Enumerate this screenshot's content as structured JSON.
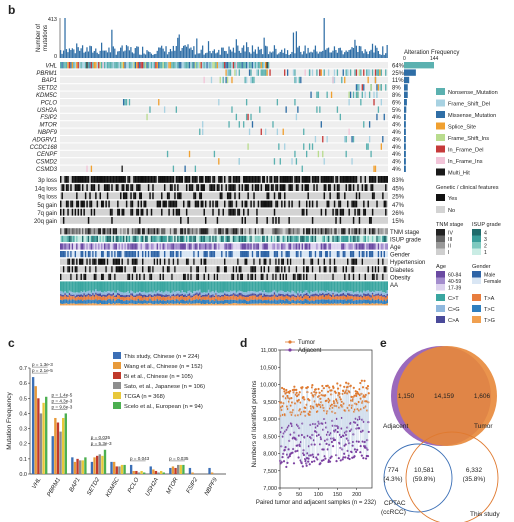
{
  "panels": {
    "b": "b",
    "c": "c",
    "d": "d",
    "e": "e"
  },
  "chart_data": [
    {
      "panel": "b",
      "type": "bar",
      "ylabel": "Number of mutations",
      "yticks": [
        413,
        0
      ],
      "frequency_axis": {
        "label": "Alteration Frequency",
        "ticks": [
          0,
          144
        ]
      },
      "genes": [
        {
          "name": "VHL",
          "pct": "64%",
          "freq": 144
        },
        {
          "name": "PBRM1",
          "pct": "25%",
          "freq": 57
        },
        {
          "name": "BAP1",
          "pct": "11%",
          "freq": 25
        },
        {
          "name": "SETD2",
          "pct": "8%",
          "freq": 18
        },
        {
          "name": "KDM5C",
          "pct": "8%",
          "freq": 18
        },
        {
          "name": "PCLO",
          "pct": "6%",
          "freq": 14
        },
        {
          "name": "USH2A",
          "pct": "5%",
          "freq": 11
        },
        {
          "name": "FSIP2",
          "pct": "4%",
          "freq": 9
        },
        {
          "name": "MTOR",
          "pct": "4%",
          "freq": 9
        },
        {
          "name": "NBPF9",
          "pct": "4%",
          "freq": 9
        },
        {
          "name": "ADGRV1",
          "pct": "4%",
          "freq": 9
        },
        {
          "name": "CCDC168",
          "pct": "4%",
          "freq": 9
        },
        {
          "name": "CENPF",
          "pct": "4%",
          "freq": 9
        },
        {
          "name": "CSMD2",
          "pct": "4%",
          "freq": 9
        },
        {
          "name": "CSMD3",
          "pct": "4%",
          "freq": 9
        }
      ],
      "cnv": [
        {
          "name": "3p loss",
          "pct": "83%"
        },
        {
          "name": "14q loss",
          "pct": "45%"
        },
        {
          "name": "9q loss",
          "pct": "25%"
        },
        {
          "name": "5q gain",
          "pct": "47%"
        },
        {
          "name": "7q gain",
          "pct": "26%"
        },
        {
          "name": "20q gain",
          "pct": "15%"
        }
      ],
      "clinical_tracks": [
        "TNM stage",
        "ISUP grade",
        "Age",
        "Gender",
        "Hypertension",
        "Diabetes",
        "Obesity",
        "AA"
      ],
      "mutation_legend": [
        {
          "label": "Nonsense_Mutation",
          "color": "#5bb1b0"
        },
        {
          "label": "Frame_Shift_Del",
          "color": "#a8d2e2"
        },
        {
          "label": "Missense_Mutation",
          "color": "#2f6ea6"
        },
        {
          "label": "Splice_Site",
          "color": "#f0a030"
        },
        {
          "label": "Frame_Shift_Ins",
          "color": "#b9dc8e"
        },
        {
          "label": "In_Frame_Del",
          "color": "#c63a3a"
        },
        {
          "label": "In_Frame_Ins",
          "color": "#f2c4d8"
        },
        {
          "label": "Multi_Hit",
          "color": "#1a1a1a"
        }
      ],
      "genetic_legend": {
        "title": "Genetic / clinical features",
        "items": [
          {
            "label": "Yes",
            "color": "#111111"
          },
          {
            "label": "No",
            "color": "#d3d3d3"
          }
        ]
      },
      "tnm_legend": {
        "title": "TNM stage",
        "levels": [
          "IV",
          "III",
          "II",
          "I"
        ],
        "colors": [
          "#222222",
          "#666666",
          "#9a9a9a",
          "#cfcfcf"
        ]
      },
      "isup_legend": {
        "title": "ISUP grade",
        "levels": [
          "4",
          "3",
          "2",
          "1"
        ],
        "colors": [
          "#1f6b6b",
          "#3a9e9a",
          "#7ec9bf",
          "#c9ece4"
        ]
      },
      "age_legend": {
        "title": "Age",
        "levels": [
          "60-84",
          "40-59",
          "17-39"
        ],
        "colors": [
          "#6a4aa2",
          "#a38ccd",
          "#dcd2ee"
        ]
      },
      "gender_legend": {
        "title": "Gender",
        "levels": [
          "Male",
          "Female"
        ],
        "colors": [
          "#2d63a6",
          "#d9e6f4"
        ]
      },
      "aa_legend": [
        {
          "label": "C>T",
          "color": "#3aa6a0"
        },
        {
          "label": "T>A",
          "color": "#e87d3e"
        },
        {
          "label": "C>G",
          "color": "#8fb8de"
        },
        {
          "label": "T>C",
          "color": "#2f7fbf"
        },
        {
          "label": "C>A",
          "color": "#4a4a9a"
        },
        {
          "label": "T>G",
          "color": "#f0a050"
        }
      ]
    },
    {
      "panel": "c",
      "type": "bar",
      "ylabel": "Mutation Frequency",
      "ylim": [
        0,
        0.7
      ],
      "yticks": [
        "0.0",
        "0.1",
        "0.2",
        "0.3",
        "0.4",
        "0.5",
        "0.6",
        "0.7"
      ],
      "categories": [
        "VHL",
        "PBRM1",
        "BAP1",
        "SETD2",
        "KDM5C",
        "PCLO",
        "USH2A",
        "MTOR",
        "FSIP2",
        "NBPF9"
      ],
      "series": [
        {
          "name": "This study, Chinese (n = 224)",
          "color": "#3b6fb6",
          "values": [
            0.64,
            0.25,
            0.11,
            0.08,
            0.08,
            0.06,
            0.05,
            0.04,
            0.04,
            0.04
          ]
        },
        {
          "name": "Wang et al., Chinese (n = 152)",
          "color": "#e89a3a",
          "values": [
            0.58,
            0.37,
            0.08,
            0.11,
            0.08,
            0.02,
            0.03,
            0.05,
            0.01,
            0.01
          ]
        },
        {
          "name": "Bi et al., Chinese (n = 105)",
          "color": "#c0392b",
          "values": [
            0.5,
            0.34,
            0.1,
            0.12,
            0.05,
            0.02,
            0.02,
            0.04,
            0.0,
            0.0
          ]
        },
        {
          "name": "Sato, et al., Japanese (n = 106)",
          "color": "#8e8e8e",
          "values": [
            0.4,
            0.28,
            0.09,
            0.13,
            0.05,
            0.01,
            0.01,
            0.06,
            0.0,
            0.0
          ]
        },
        {
          "name": "TCGA (n = 368)",
          "color": "#e8c83a",
          "values": [
            0.47,
            0.37,
            0.09,
            0.12,
            0.06,
            0.02,
            0.02,
            0.06,
            0.0,
            0.0
          ]
        },
        {
          "name": "Scelo et al., European (n = 94)",
          "color": "#4caf50",
          "values": [
            0.51,
            0.4,
            0.11,
            0.16,
            0.06,
            0.01,
            0.01,
            0.06,
            0.0,
            0.0
          ]
        }
      ],
      "annotations": [
        {
          "text": "p = 2.1e-5",
          "category": "VHL",
          "level": 0
        },
        {
          "text": "p = 1.3e-3",
          "category": "VHL",
          "level": 1
        },
        {
          "text": "p = 9.8e-3",
          "category": "PBRM1",
          "level": 0
        },
        {
          "text": "p = 4.3e-3",
          "category": "PBRM1",
          "level": 1
        },
        {
          "text": "p = 1.4e-5",
          "category": "PBRM1",
          "level": 2
        },
        {
          "text": "p = 5.3e-3",
          "category": "SETD2",
          "level": 0
        },
        {
          "text": "p = 0.035",
          "category": "SETD2",
          "level": 1
        },
        {
          "text": "p = 0.043",
          "category": "PCLO",
          "level": 0
        },
        {
          "text": "p = 0.035",
          "category": "MTOR",
          "level": 0
        }
      ]
    },
    {
      "panel": "d",
      "type": "scatter",
      "title": "",
      "xlabel": "Paired tumor and adjacent samples (n = 232)",
      "ylabel": "Numbers of Identified proteins",
      "xlim": [
        0,
        240
      ],
      "ylim": [
        7000,
        11000
      ],
      "xticks": [
        0,
        50,
        100,
        150,
        200
      ],
      "yticks": [
        7000,
        7500,
        8000,
        8500,
        9000,
        9500,
        10000,
        10500,
        11000
      ],
      "series": [
        {
          "name": "Tumor",
          "color": "#e07a30",
          "n": 232,
          "trend": [
            9450,
            9700
          ]
        },
        {
          "name": "Adjacent",
          "color": "#7b3fa0",
          "n": 232,
          "trend": [
            8200,
            8500
          ]
        }
      ]
    },
    {
      "panel": "e",
      "type": "venn",
      "top": {
        "sets": [
          {
            "name": "Adjacent",
            "color": "#8a4fb0"
          },
          {
            "name": "Tumor",
            "color": "#e8883a"
          }
        ],
        "values": {
          "only_a": "1,150",
          "both": "14,159",
          "only_b": "1,606"
        }
      },
      "bottom": {
        "sets": [
          {
            "name": "CPTAC (ccRCC)",
            "color": "#3b6fb6"
          },
          {
            "name": "This study",
            "color": "#e07a30"
          }
        ],
        "values": {
          "only_a": "774",
          "only_a_pct": "(4.3%)",
          "both": "10,581",
          "both_pct": "(59.8%)",
          "only_b": "6,332",
          "only_b_pct": "(35.8%)"
        }
      }
    }
  ]
}
